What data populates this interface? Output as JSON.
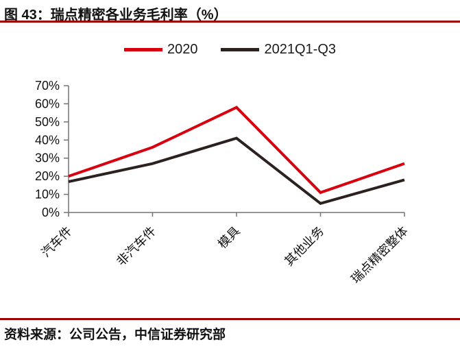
{
  "header": {
    "figure_title": "图 43：瑞点精密各业务毛利率（%）"
  },
  "footer": {
    "source_text": "资料来源：公司公告，中信证券研究部"
  },
  "colors": {
    "rule": "#a00000",
    "axis": "#737373",
    "text": "#111111"
  },
  "chart_data": {
    "type": "line",
    "title": "瑞点精密各业务毛利率（%）",
    "categories": [
      "汽车件",
      "非汽车件",
      "模具",
      "其他业务",
      "瑞点精密整体"
    ],
    "series": [
      {
        "name": "2020",
        "color": "#d7000f",
        "values": [
          20,
          36,
          58,
          11,
          27
        ]
      },
      {
        "name": "2021Q1-Q3",
        "color": "#2b2220",
        "values": [
          17,
          27,
          41,
          5,
          18
        ]
      }
    ],
    "xlabel": "",
    "ylabel": "",
    "ylim": [
      0,
      70
    ],
    "ytick_step": 10,
    "ytick_labels": [
      "0%",
      "10%",
      "20%",
      "30%",
      "40%",
      "50%",
      "60%",
      "70%"
    ],
    "grid": false,
    "legend_position": "top"
  }
}
